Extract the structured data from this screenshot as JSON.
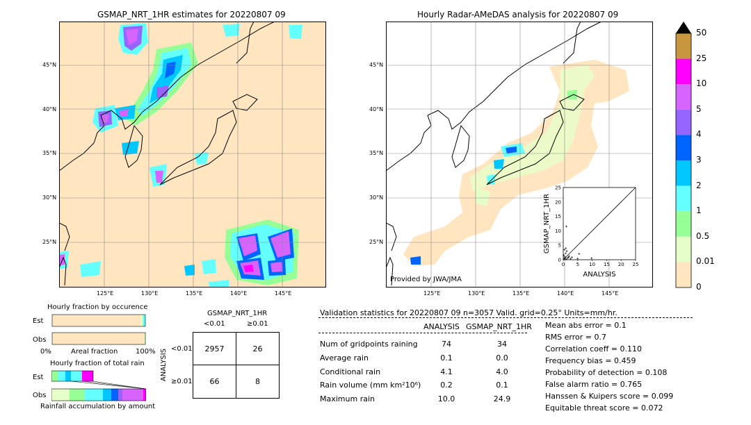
{
  "left_map": {
    "title": "GSMAP_NRT_1HR estimates for 20220807 09",
    "lat_labels": [
      "45°N",
      "40°N",
      "35°N",
      "30°N",
      "25°N"
    ],
    "lon_labels": [
      "125°E",
      "130°E",
      "135°E",
      "140°E",
      "145°E"
    ]
  },
  "right_map": {
    "title": "Hourly Radar-AMeDAS analysis for 20220807 09",
    "lat_labels": [
      "45°N",
      "40°N",
      "35°N",
      "30°N",
      "25°N"
    ],
    "lon_labels": [
      "125°E",
      "130°E",
      "135°E",
      "140°E",
      "145°E"
    ],
    "credit": "Provided by JWA/JMA"
  },
  "colorbar": {
    "labels": [
      "50",
      "25",
      "10",
      "5",
      "4",
      "3",
      "2",
      "1",
      "0.5",
      "0.01",
      "0"
    ],
    "colors": [
      "#c8963c",
      "#ff00ff",
      "#d764ff",
      "#9664ff",
      "#0064ff",
      "#00c8ff",
      "#64ffff",
      "#96ff96",
      "#e6ffc8",
      "#ffe6c0"
    ],
    "over_color": "#000000"
  },
  "chart_data": [
    {
      "type": "scatter",
      "xlabel": "ANALYSIS",
      "ylabel": "GSMAP_NRT_1HR",
      "xlim": [
        0,
        25
      ],
      "ylim": [
        0,
        25
      ],
      "x_ticks": [
        "0",
        "5",
        "10",
        "15",
        "20",
        "25"
      ],
      "y_ticks": [
        "0",
        "5",
        "10",
        "15",
        "20",
        "25"
      ],
      "points": [
        {
          "x": 0.3,
          "y": 0.4
        },
        {
          "x": 0.5,
          "y": 1.0
        },
        {
          "x": 0.8,
          "y": 2.2
        },
        {
          "x": 1.0,
          "y": 0.2
        },
        {
          "x": 1.2,
          "y": 3.0
        },
        {
          "x": 0.2,
          "y": 1.6
        },
        {
          "x": 1.5,
          "y": 0.6
        },
        {
          "x": 2.0,
          "y": 1.2
        },
        {
          "x": 0.4,
          "y": 3.5
        },
        {
          "x": 2.5,
          "y": 0.3
        },
        {
          "x": 3.0,
          "y": 0.8
        },
        {
          "x": 0.6,
          "y": 0.5
        },
        {
          "x": 1.1,
          "y": 11.5
        },
        {
          "x": 5.0,
          "y": 0.4
        },
        {
          "x": 9.8,
          "y": 0.5
        },
        {
          "x": 5.5,
          "y": 2.0
        },
        {
          "x": 1.8,
          "y": 0.9
        },
        {
          "x": 0.9,
          "y": 4.0
        }
      ]
    },
    {
      "type": "bar",
      "title": "Hourly fraction by occurence",
      "categories": [
        "Est",
        "Obs"
      ],
      "xlabel": "Areal fraction",
      "x_tick_labels": [
        "0%",
        "100%"
      ],
      "series": [
        {
          "values": [
            0.953,
            0.987
          ]
        },
        {
          "values": [
            0.016,
            0.009
          ]
        },
        {
          "values": [
            0.008,
            0.004
          ]
        }
      ],
      "colors": [
        "#ffe6c0",
        "#e6ffc8",
        "#96ff96",
        "#64ffff",
        "#00c8ff",
        "#0064ff"
      ]
    },
    {
      "type": "bar",
      "title": "Hourly fraction of total rain",
      "categories": [
        "Est",
        "Obs"
      ],
      "xlabel": "Rainfall accumulation by amount"
    }
  ],
  "contingency": {
    "title": "GSMAP_NRT_1HR",
    "col_labels": [
      "<0.01",
      "≥0.01"
    ],
    "row_title": "ANALYSIS",
    "row_labels": [
      "<0.01",
      "≥0.01"
    ],
    "cells": [
      [
        "2957",
        "26"
      ],
      [
        "66",
        "8"
      ]
    ]
  },
  "validation": {
    "header": "Validation statistics for 20220807 09   n=3057 Valid. grid=0.25° Units=mm/hr.",
    "col_analysis": "ANALYSIS",
    "col_gsmap": "GSMAP_NRT_1HR",
    "rows": [
      {
        "label": "Num of gridpoints raining",
        "analysis": "74",
        "gsmap": "34"
      },
      {
        "label": "Average rain",
        "analysis": "0.1",
        "gsmap": "0.0"
      },
      {
        "label": "Conditional rain",
        "analysis": "4.1",
        "gsmap": "4.0"
      },
      {
        "label": "Rain volume (mm km²10⁶)",
        "analysis": "0.2",
        "gsmap": "0.1"
      },
      {
        "label": "Maximum rain",
        "analysis": "10.0",
        "gsmap": "24.9"
      }
    ],
    "scores": [
      "Mean abs error =    0.1",
      "RMS error =    0.7",
      "Correlation coeff =  0.110",
      "Frequency bias =  0.459",
      "Probability of detection =  0.108",
      "False alarm ratio =  0.765",
      "Hanssen & Kuipers score =  0.099",
      "Equitable threat score =  0.072"
    ]
  }
}
